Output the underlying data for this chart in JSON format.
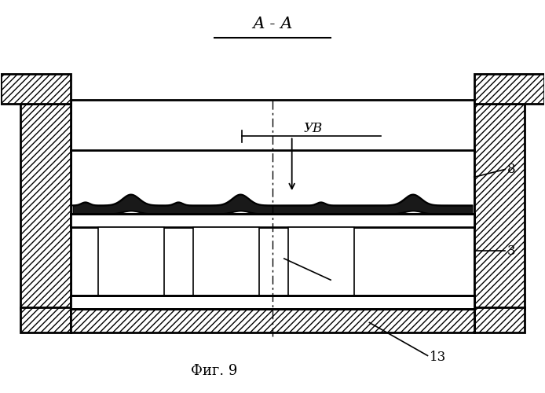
{
  "title": "А - А",
  "fig_label": "Фиг. 9",
  "label_uv": "УВ",
  "label_8": "8",
  "label_3": "3",
  "label_13": "13",
  "bg_color": "#ffffff",
  "line_color": "#000000",
  "figsize": [
    6.94,
    5.0
  ],
  "dpi": 100
}
